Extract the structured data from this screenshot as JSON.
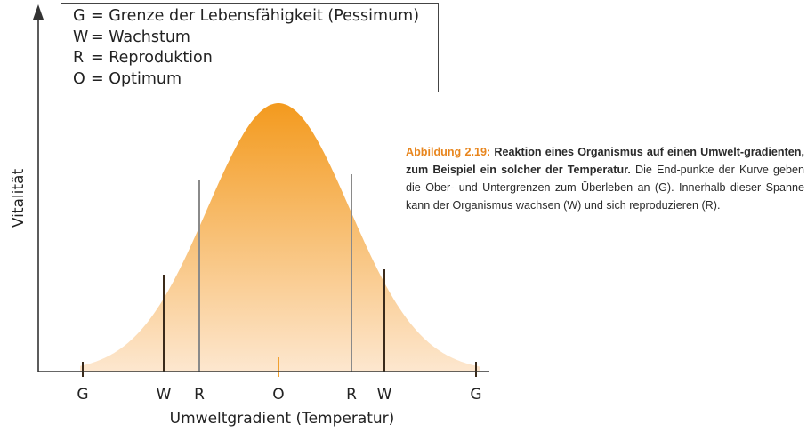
{
  "legend": {
    "items": [
      {
        "key": "G",
        "text": "= Grenze der Lebensfähigkeit (Pessimum)"
      },
      {
        "key": "W",
        "text": "= Wachstum"
      },
      {
        "key": "R",
        "text": "= Reproduktion"
      },
      {
        "key": "O",
        "text": "= Optimum"
      }
    ]
  },
  "axes": {
    "y_label": "Vitalität",
    "x_label": "Umweltgradient (Temperatur)"
  },
  "ticks": [
    {
      "label": "G",
      "kind": "G",
      "color": "#3a2a1a"
    },
    {
      "label": "W",
      "kind": "W",
      "color": "#3a2a1a"
    },
    {
      "label": "R",
      "kind": "R",
      "color": "#8a8a8a"
    },
    {
      "label": "O",
      "kind": "O",
      "color": "#f0a030"
    },
    {
      "label": "R",
      "kind": "R",
      "color": "#8a8a8a"
    },
    {
      "label": "W",
      "kind": "W",
      "color": "#3a2a1a"
    },
    {
      "label": "G",
      "kind": "G",
      "color": "#3a2a1a"
    }
  ],
  "colors": {
    "curve_top": "#f39a1e",
    "curve_bottom": "#fde7cf",
    "axis": "#333333"
  },
  "caption": {
    "label": "Abbildung 2.19:",
    "title": "Reaktion eines Organismus auf einen Umwelt-gradienten, zum Beispiel ein solcher der Temperatur.",
    "body": "Die End-punkte der Kurve geben die Ober- und Untergrenzen zum Überleben an (G). Innerhalb dieser Spanne kann der Organismus wachsen (W) und sich reproduzieren (R)."
  }
}
